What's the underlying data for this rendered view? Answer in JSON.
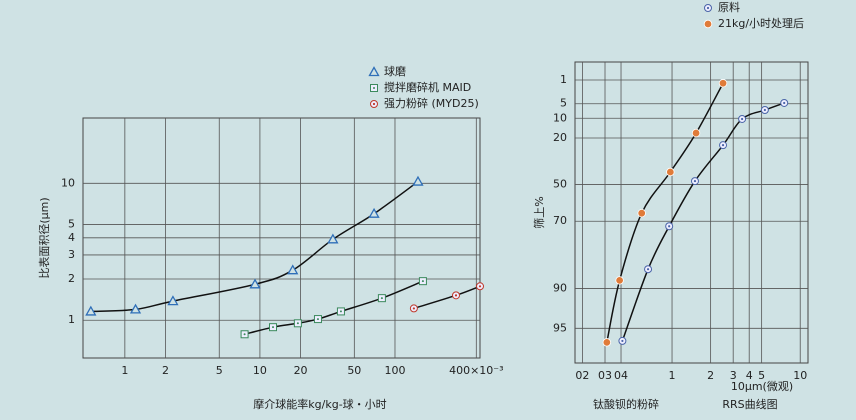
{
  "chart_data": [
    {
      "type": "line",
      "xlabel": "摩介球能率kg/kg-球・小时",
      "ylabel": "比表面积径(μm)",
      "xscale": "log",
      "yscale": "log",
      "xlim": [
        0.49,
        426
      ],
      "ylim": [
        0.53,
        30
      ],
      "xticks": [
        1,
        2,
        5,
        10,
        20,
        50,
        100,
        {
          "value": 400,
          "label": "400×10⁻³"
        }
      ],
      "yticks": [
        1,
        2,
        3,
        4,
        5,
        10
      ],
      "grid": true,
      "legend": "top-right",
      "series": [
        {
          "name": "球磨",
          "color": "#2f6fb8",
          "marker": "triangle",
          "x": [
            0.56,
            1.2,
            2.27,
            9.2,
            17.5,
            34.7,
            70,
            148
          ],
          "values": [
            1.16,
            1.2,
            1.38,
            1.83,
            2.32,
            3.9,
            6.0,
            10.3
          ]
        },
        {
          "name": "搅拌磨碎机 MAID",
          "color": "#3b8a5c",
          "marker": "square-dot",
          "x": [
            7.7,
            12.5,
            19.1,
            26.9,
            39.8,
            80,
            161
          ],
          "values": [
            0.79,
            0.89,
            0.95,
            1.02,
            1.16,
            1.45,
            1.93
          ]
        },
        {
          "name": "强力粉碎 (MYD25)",
          "color": "#c0392b",
          "marker": "circle-dot",
          "x": [
            138,
            283,
            426
          ],
          "values": [
            1.22,
            1.52,
            1.77
          ]
        }
      ]
    },
    {
      "type": "line",
      "xlabel": "10μm(微观)",
      "ylabel": "筛上%",
      "subtitle": "RRS曲线图",
      "caption": "钛酸钡的粉碎",
      "xscale": "log",
      "yscale": "rosin-rammler",
      "xlim": [
        0.175,
        11.5
      ],
      "ylim": [
        0.17,
        97.3
      ],
      "xticks": [
        {
          "value": 0.2,
          "label": "02"
        },
        {
          "value": 0.3,
          "label": "03"
        },
        {
          "value": 0.4,
          "label": "04"
        },
        1,
        2,
        3,
        4,
        5,
        10
      ],
      "yticks": [
        1,
        5,
        10,
        20,
        50,
        70,
        90,
        95
      ],
      "grid": true,
      "legend": "top-right",
      "series": [
        {
          "name": "原料",
          "color": "#4a64a8",
          "marker": "circle-dot",
          "x": [
            0.41,
            0.65,
            0.95,
            1.51,
            2.5,
            3.52,
            5.3,
            7.5
          ],
          "values": [
            96.0,
            86.1,
            72.2,
            47.8,
            24.3,
            10.3,
            6.9,
            4.8
          ]
        },
        {
          "name": "21kg/小时处理后",
          "color": "#e07b39",
          "marker": "circle-filled",
          "x": [
            0.31,
            0.39,
            0.58,
            0.97,
            1.54,
            2.5
          ],
          "values": [
            96.1,
            88.5,
            66.2,
            41.9,
            17.2,
            1.3
          ]
        }
      ]
    }
  ]
}
